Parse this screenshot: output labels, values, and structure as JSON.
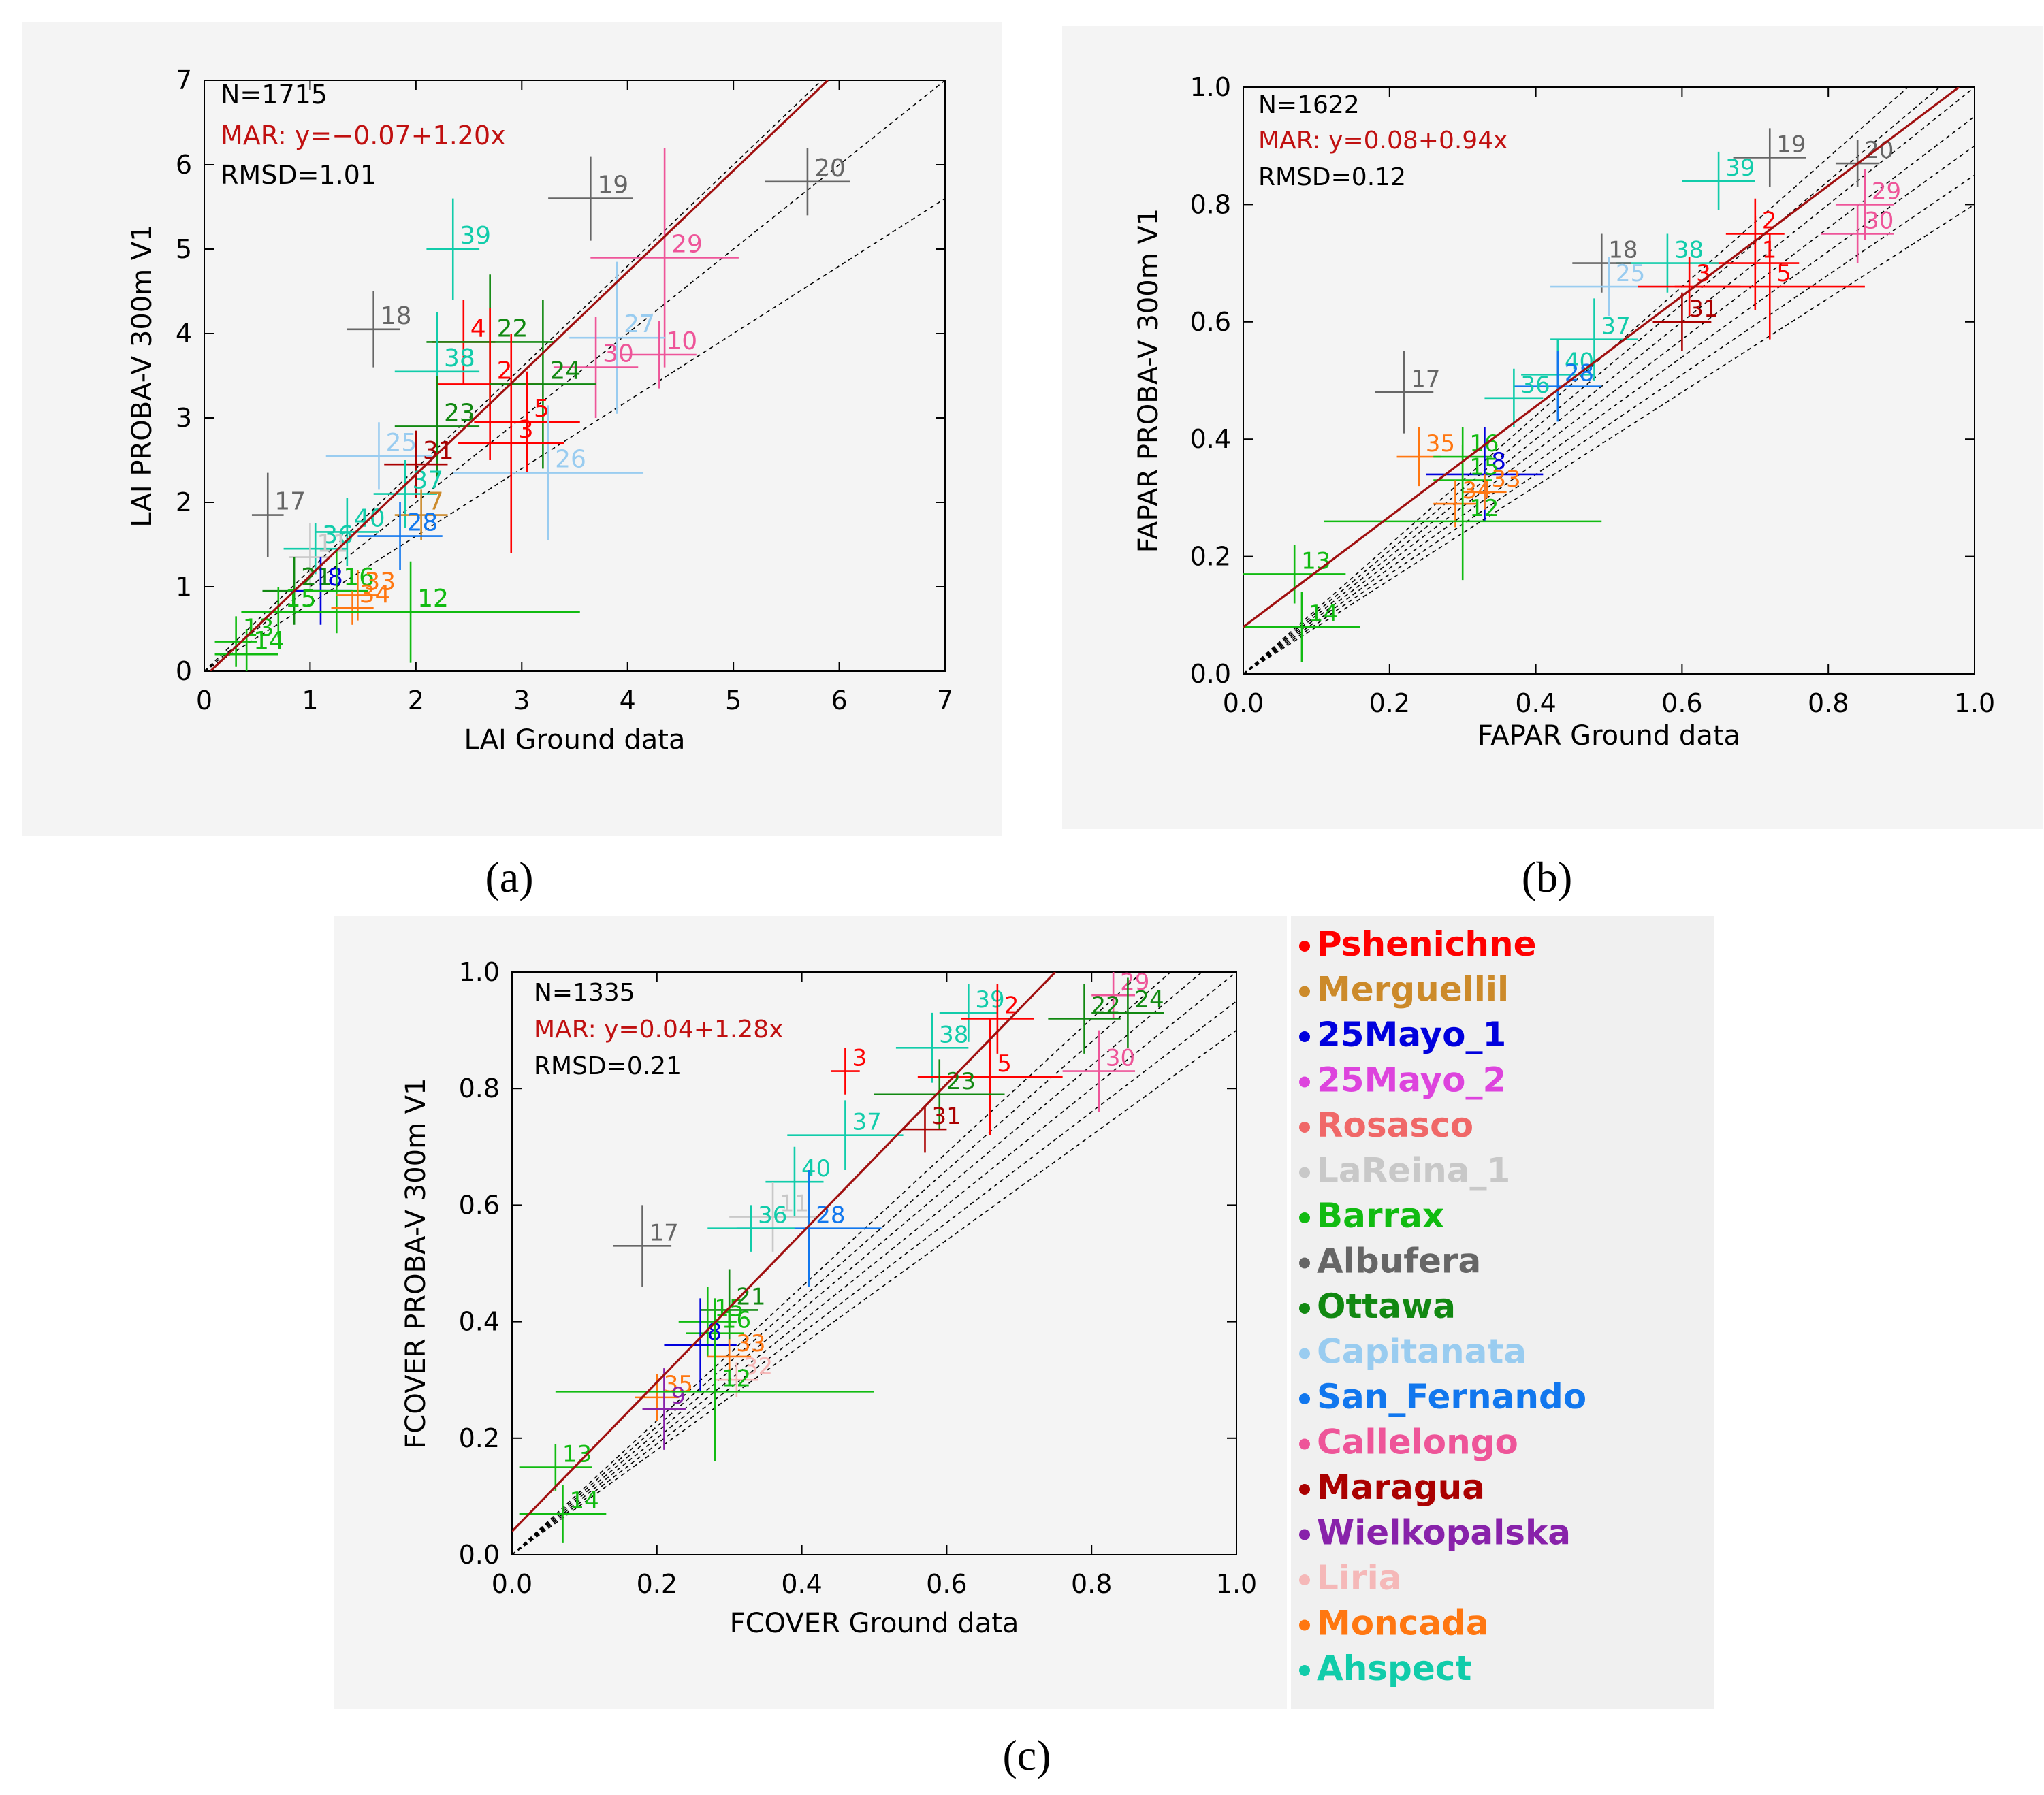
{
  "figure": {
    "captions": [
      "(a)",
      "(b)",
      "(c)"
    ]
  },
  "site_colors": {
    "Pshenichne": "#ff0000",
    "Merguellil": "#cc8a2a",
    "25Mayo_1": "#0000dd",
    "25Mayo_2": "#dd44dd",
    "Rosasco": "#f06868",
    "LaReina_1": "#c8c8c8",
    "Barrax": "#11bb11",
    "Albufera": "#666666",
    "Ottawa": "#118811",
    "Capitanata": "#99ccf0",
    "San_Fernando": "#1177ee",
    "Callelongo": "#ee5599",
    "Maragua": "#aa0000",
    "Wielkopalska": "#8822aa",
    "Liria": "#f5b8b8",
    "Moncada": "#ff7711",
    "Ahspect": "#11ccaa"
  },
  "legend": {
    "entries": [
      {
        "label": "Pshenichne",
        "color": "#ff0000"
      },
      {
        "label": "Merguellil",
        "color": "#cc8a2a"
      },
      {
        "label": "25Mayo_1",
        "color": "#0000dd"
      },
      {
        "label": "25Mayo_2",
        "color": "#dd44dd"
      },
      {
        "label": "Rosasco",
        "color": "#f06868"
      },
      {
        "label": "LaReina_1",
        "color": "#c8c8c8"
      },
      {
        "label": "Barrax",
        "color": "#11bb11"
      },
      {
        "label": "Albufera",
        "color": "#666666"
      },
      {
        "label": "Ottawa",
        "color": "#118811"
      },
      {
        "label": "Capitanata",
        "color": "#99ccf0"
      },
      {
        "label": "San_Fernando",
        "color": "#1177ee"
      },
      {
        "label": "Callelongo",
        "color": "#ee5599"
      },
      {
        "label": "Maragua",
        "color": "#aa0000"
      },
      {
        "label": "Wielkopalska",
        "color": "#8822aa"
      },
      {
        "label": "Liria",
        "color": "#f5b8b8"
      },
      {
        "label": "Moncada",
        "color": "#ff7711"
      },
      {
        "label": "Ahspect",
        "color": "#11ccaa"
      }
    ]
  },
  "chart_data": [
    {
      "type": "scatter",
      "panel": "(a)",
      "xlabel": "LAI Ground data",
      "ylabel": "LAI PROBA-V 300m V1",
      "xlim": [
        0,
        7
      ],
      "ylim": [
        0,
        7
      ],
      "xticks": [
        0,
        1,
        2,
        3,
        4,
        5,
        6,
        7
      ],
      "yticks": [
        0,
        1,
        2,
        3,
        4,
        5,
        6,
        7
      ],
      "tick_decimals": 0,
      "stats": {
        "n": "N=1715",
        "mar": "MAR: y=−0.07+1.20x",
        "rmsd": "RMSD=1.01"
      },
      "regression": {
        "intercept": -0.07,
        "slope": 1.2
      },
      "reference_slopes": [
        0.8,
        1.0,
        1.2
      ],
      "points": [
        {
          "id": "39",
          "site": "Ahspect",
          "x": 2.35,
          "y": 5.0,
          "xerr": 0.25,
          "yerr": 0.6
        },
        {
          "id": "19",
          "site": "Albufera",
          "x": 3.65,
          "y": 5.6,
          "xerr": 0.4,
          "yerr": 0.5
        },
        {
          "id": "20",
          "site": "Albufera",
          "x": 5.7,
          "y": 5.8,
          "xerr": 0.4,
          "yerr": 0.4
        },
        {
          "id": "29",
          "site": "Callelongo",
          "x": 4.35,
          "y": 4.9,
          "xerr": 0.7,
          "yerr": 1.3
        },
        {
          "id": "18",
          "site": "Albufera",
          "x": 1.6,
          "y": 4.05,
          "xerr": 0.25,
          "yerr": 0.45
        },
        {
          "id": "4",
          "site": "Pshenichne",
          "x": 2.45,
          "y": 3.9,
          "xerr": 0.3,
          "yerr": 0.5
        },
        {
          "id": "22",
          "site": "Ottawa",
          "x": 2.7,
          "y": 3.9,
          "xerr": 0.6,
          "yerr": 0.8
        },
        {
          "id": "27",
          "site": "Capitanata",
          "x": 3.9,
          "y": 3.95,
          "xerr": 0.45,
          "yerr": 0.9
        },
        {
          "id": "38",
          "site": "Ahspect",
          "x": 2.2,
          "y": 3.55,
          "xerr": 0.4,
          "yerr": 0.7
        },
        {
          "id": "10",
          "site": "Callelongo",
          "x": 4.3,
          "y": 3.75,
          "xerr": 0.35,
          "yerr": 0.4
        },
        {
          "id": "30",
          "site": "Callelongo",
          "x": 3.7,
          "y": 3.6,
          "xerr": 0.4,
          "yerr": 0.6
        },
        {
          "id": "2",
          "site": "Pshenichne",
          "x": 2.7,
          "y": 3.4,
          "xerr": 0.5,
          "yerr": 0.9
        },
        {
          "id": "24",
          "site": "Ottawa",
          "x": 3.2,
          "y": 3.4,
          "xerr": 0.5,
          "yerr": 1.0
        },
        {
          "id": "23",
          "site": "Ottawa",
          "x": 2.2,
          "y": 2.9,
          "xerr": 0.4,
          "yerr": 0.6
        },
        {
          "id": "5",
          "site": "Pshenichne",
          "x": 3.05,
          "y": 2.95,
          "xerr": 0.5,
          "yerr": 0.6
        },
        {
          "id": "25",
          "site": "Capitanata",
          "x": 1.65,
          "y": 2.55,
          "xerr": 0.5,
          "yerr": 0.4
        },
        {
          "id": "26",
          "site": "Capitanata",
          "x": 3.25,
          "y": 2.35,
          "xerr": 0.9,
          "yerr": 0.8
        },
        {
          "id": "31",
          "site": "Maragua",
          "x": 2.0,
          "y": 2.45,
          "xerr": 0.3,
          "yerr": 0.4
        },
        {
          "id": "3",
          "site": "Pshenichne",
          "x": 2.9,
          "y": 2.7,
          "xerr": 0.5,
          "yerr": 1.3
        },
        {
          "id": "37",
          "site": "Ahspect",
          "x": 1.9,
          "y": 2.1,
          "xerr": 0.3,
          "yerr": 0.4
        },
        {
          "id": "7",
          "site": "Merguellil",
          "x": 2.05,
          "y": 1.85,
          "xerr": 0.25,
          "yerr": 0.3
        },
        {
          "id": "17",
          "site": "Albufera",
          "x": 0.6,
          "y": 1.85,
          "xerr": 0.15,
          "yerr": 0.5
        },
        {
          "id": "40",
          "site": "Ahspect",
          "x": 1.35,
          "y": 1.65,
          "xerr": 0.3,
          "yerr": 0.4
        },
        {
          "id": "28",
          "site": "San_Fernando",
          "x": 1.85,
          "y": 1.6,
          "xerr": 0.4,
          "yerr": 0.4
        },
        {
          "id": "36",
          "site": "Ahspect",
          "x": 1.05,
          "y": 1.45,
          "xerr": 0.3,
          "yerr": 0.3
        },
        {
          "id": "11",
          "site": "LaReina_1",
          "x": 1.0,
          "y": 1.35,
          "xerr": 0.2,
          "yerr": 0.4
        },
        {
          "id": "21",
          "site": "Ottawa",
          "x": 0.85,
          "y": 0.95,
          "xerr": 0.3,
          "yerr": 0.4
        },
        {
          "id": "8",
          "site": "25Mayo_1",
          "x": 1.1,
          "y": 0.95,
          "xerr": 0.3,
          "yerr": 0.4
        },
        {
          "id": "16",
          "site": "Barrax",
          "x": 1.25,
          "y": 0.95,
          "xerr": 0.3,
          "yerr": 0.5
        },
        {
          "id": "33",
          "site": "Moncada",
          "x": 1.45,
          "y": 0.9,
          "xerr": 0.2,
          "yerr": 0.3
        },
        {
          "id": "34",
          "site": "Moncada",
          "x": 1.4,
          "y": 0.75,
          "xerr": 0.2,
          "yerr": 0.2
        },
        {
          "id": "12",
          "site": "Barrax",
          "x": 1.95,
          "y": 0.7,
          "xerr": 1.6,
          "yerr": 0.6
        },
        {
          "id": "15",
          "site": "Barrax",
          "x": 0.7,
          "y": 0.7,
          "xerr": 0.3,
          "yerr": 0.3
        },
        {
          "id": "13",
          "site": "Barrax",
          "x": 0.3,
          "y": 0.35,
          "xerr": 0.2,
          "yerr": 0.3
        },
        {
          "id": "14",
          "site": "Barrax",
          "x": 0.4,
          "y": 0.2,
          "xerr": 0.3,
          "yerr": 0.3
        }
      ]
    },
    {
      "type": "scatter",
      "panel": "(b)",
      "xlabel": "FAPAR Ground data",
      "ylabel": "FAPAR PROBA-V 300m V1",
      "xlim": [
        0,
        1
      ],
      "ylim": [
        0,
        1
      ],
      "xticks": [
        0,
        0.2,
        0.4,
        0.6,
        0.8,
        1.0
      ],
      "yticks": [
        0,
        0.2,
        0.4,
        0.6,
        0.8,
        1.0
      ],
      "tick_decimals": 1,
      "stats": {
        "n": "N=1622",
        "mar": "MAR: y=0.08+0.94x",
        "rmsd": "RMSD=0.12"
      },
      "regression": {
        "intercept": 0.08,
        "slope": 0.94
      },
      "reference_slopes": [
        0.8,
        0.85,
        0.9,
        0.95,
        1.0,
        1.05,
        1.1
      ],
      "points": [
        {
          "id": "19",
          "site": "Albufera",
          "x": 0.72,
          "y": 0.88,
          "xerr": 0.05,
          "yerr": 0.05
        },
        {
          "id": "39",
          "site": "Ahspect",
          "x": 0.65,
          "y": 0.84,
          "xerr": 0.05,
          "yerr": 0.05
        },
        {
          "id": "20",
          "site": "Albufera",
          "x": 0.84,
          "y": 0.87,
          "xerr": 0.03,
          "yerr": 0.04
        },
        {
          "id": "29",
          "site": "Callelongo",
          "x": 0.85,
          "y": 0.8,
          "xerr": 0.04,
          "yerr": 0.06
        },
        {
          "id": "30",
          "site": "Callelongo",
          "x": 0.84,
          "y": 0.75,
          "xerr": 0.05,
          "yerr": 0.05
        },
        {
          "id": "2",
          "site": "Pshenichne",
          "x": 0.7,
          "y": 0.75,
          "xerr": 0.04,
          "yerr": 0.06
        },
        {
          "id": "1",
          "site": "Pshenichne",
          "x": 0.7,
          "y": 0.7,
          "xerr": 0.06,
          "yerr": 0.08
        },
        {
          "id": "38",
          "site": "Ahspect",
          "x": 0.58,
          "y": 0.7,
          "xerr": 0.07,
          "yerr": 0.05
        },
        {
          "id": "18",
          "site": "Albufera",
          "x": 0.49,
          "y": 0.7,
          "xerr": 0.04,
          "yerr": 0.05
        },
        {
          "id": "25",
          "site": "Capitanata",
          "x": 0.5,
          "y": 0.66,
          "xerr": 0.08,
          "yerr": 0.05
        },
        {
          "id": "3",
          "site": "Pshenichne",
          "x": 0.61,
          "y": 0.66,
          "xerr": 0.07,
          "yerr": 0.05
        },
        {
          "id": "5",
          "site": "Pshenichne",
          "x": 0.72,
          "y": 0.66,
          "xerr": 0.13,
          "yerr": 0.09
        },
        {
          "id": "31",
          "site": "Maragua",
          "x": 0.6,
          "y": 0.6,
          "xerr": 0.04,
          "yerr": 0.05
        },
        {
          "id": "37",
          "site": "Ahspect",
          "x": 0.48,
          "y": 0.57,
          "xerr": 0.06,
          "yerr": 0.07
        },
        {
          "id": "40",
          "site": "Ahspect",
          "x": 0.43,
          "y": 0.51,
          "xerr": 0.05,
          "yerr": 0.06
        },
        {
          "id": "28",
          "site": "San_Fernando",
          "x": 0.43,
          "y": 0.49,
          "xerr": 0.06,
          "yerr": 0.06
        },
        {
          "id": "36",
          "site": "Ahspect",
          "x": 0.37,
          "y": 0.47,
          "xerr": 0.04,
          "yerr": 0.05
        },
        {
          "id": "17",
          "site": "Albufera",
          "x": 0.22,
          "y": 0.48,
          "xerr": 0.04,
          "yerr": 0.07
        },
        {
          "id": "35",
          "site": "Moncada",
          "x": 0.24,
          "y": 0.37,
          "xerr": 0.03,
          "yerr": 0.05
        },
        {
          "id": "16",
          "site": "Barrax",
          "x": 0.3,
          "y": 0.37,
          "xerr": 0.04,
          "yerr": 0.05
        },
        {
          "id": "8",
          "site": "25Mayo_1",
          "x": 0.33,
          "y": 0.34,
          "xerr": 0.08,
          "yerr": 0.08
        },
        {
          "id": "15",
          "site": "Barrax",
          "x": 0.3,
          "y": 0.33,
          "xerr": 0.04,
          "yerr": 0.06
        },
        {
          "id": "33",
          "site": "Moncada",
          "x": 0.33,
          "y": 0.31,
          "xerr": 0.03,
          "yerr": 0.03
        },
        {
          "id": "34",
          "site": "Moncada",
          "x": 0.29,
          "y": 0.29,
          "xerr": 0.03,
          "yerr": 0.04
        },
        {
          "id": "12",
          "site": "Barrax",
          "x": 0.3,
          "y": 0.26,
          "xerr": 0.19,
          "yerr": 0.1
        },
        {
          "id": "13",
          "site": "Barrax",
          "x": 0.07,
          "y": 0.17,
          "xerr": 0.07,
          "yerr": 0.05
        },
        {
          "id": "14",
          "site": "Barrax",
          "x": 0.08,
          "y": 0.08,
          "xerr": 0.08,
          "yerr": 0.06
        }
      ]
    },
    {
      "type": "scatter",
      "panel": "(c)",
      "xlabel": "FCOVER Ground data",
      "ylabel": "FCOVER PROBA-V 300m V1",
      "xlim": [
        0,
        1
      ],
      "ylim": [
        0,
        1
      ],
      "xticks": [
        0,
        0.2,
        0.4,
        0.6,
        0.8,
        1.0
      ],
      "yticks": [
        0,
        0.2,
        0.4,
        0.6,
        0.8,
        1.0
      ],
      "tick_decimals": 1,
      "stats": {
        "n": "N=1335",
        "mar": "MAR: y=0.04+1.28x",
        "rmsd": "RMSD=0.21"
      },
      "regression": {
        "intercept": 0.04,
        "slope": 1.28
      },
      "reference_slopes": [
        0.9,
        0.95,
        1.0,
        1.05,
        1.1,
        1.15
      ],
      "points": [
        {
          "id": "29",
          "site": "Callelongo",
          "x": 0.83,
          "y": 0.96,
          "xerr": 0.03,
          "yerr": 0.04
        },
        {
          "id": "39",
          "site": "Ahspect",
          "x": 0.63,
          "y": 0.93,
          "xerr": 0.04,
          "yerr": 0.05
        },
        {
          "id": "2",
          "site": "Pshenichne",
          "x": 0.67,
          "y": 0.92,
          "xerr": 0.05,
          "yerr": 0.06
        },
        {
          "id": "22",
          "site": "Ottawa",
          "x": 0.79,
          "y": 0.92,
          "xerr": 0.05,
          "yerr": 0.06
        },
        {
          "id": "24",
          "site": "Ottawa",
          "x": 0.85,
          "y": 0.93,
          "xerr": 0.05,
          "yerr": 0.06
        },
        {
          "id": "38",
          "site": "Ahspect",
          "x": 0.58,
          "y": 0.87,
          "xerr": 0.05,
          "yerr": 0.06
        },
        {
          "id": "3",
          "site": "Pshenichne",
          "x": 0.46,
          "y": 0.83,
          "xerr": 0.02,
          "yerr": 0.04
        },
        {
          "id": "5",
          "site": "Pshenichne",
          "x": 0.66,
          "y": 0.82,
          "xerr": 0.1,
          "yerr": 0.1
        },
        {
          "id": "30",
          "site": "Callelongo",
          "x": 0.81,
          "y": 0.83,
          "xerr": 0.05,
          "yerr": 0.07
        },
        {
          "id": "23",
          "site": "Ottawa",
          "x": 0.59,
          "y": 0.79,
          "xerr": 0.09,
          "yerr": 0.06
        },
        {
          "id": "31",
          "site": "Maragua",
          "x": 0.57,
          "y": 0.73,
          "xerr": 0.03,
          "yerr": 0.04
        },
        {
          "id": "37",
          "site": "Ahspect",
          "x": 0.46,
          "y": 0.72,
          "xerr": 0.08,
          "yerr": 0.06
        },
        {
          "id": "40",
          "site": "Ahspect",
          "x": 0.39,
          "y": 0.64,
          "xerr": 0.04,
          "yerr": 0.06
        },
        {
          "id": "11",
          "site": "LaReina_1",
          "x": 0.36,
          "y": 0.58,
          "xerr": 0.06,
          "yerr": 0.06
        },
        {
          "id": "28",
          "site": "San_Fernando",
          "x": 0.41,
          "y": 0.56,
          "xerr": 0.1,
          "yerr": 0.1
        },
        {
          "id": "36",
          "site": "Ahspect",
          "x": 0.33,
          "y": 0.56,
          "xerr": 0.06,
          "yerr": 0.04
        },
        {
          "id": "17",
          "site": "Albufera",
          "x": 0.18,
          "y": 0.53,
          "xerr": 0.04,
          "yerr": 0.07
        },
        {
          "id": "21",
          "site": "Ottawa",
          "x": 0.3,
          "y": 0.42,
          "xerr": 0.04,
          "yerr": 0.07
        },
        {
          "id": "15",
          "site": "Barrax",
          "x": 0.27,
          "y": 0.4,
          "xerr": 0.04,
          "yerr": 0.06
        },
        {
          "id": "16",
          "site": "Barrax",
          "x": 0.28,
          "y": 0.38,
          "xerr": 0.04,
          "yerr": 0.06
        },
        {
          "id": "8",
          "site": "25Mayo_1",
          "x": 0.26,
          "y": 0.36,
          "xerr": 0.05,
          "yerr": 0.08
        },
        {
          "id": "33",
          "site": "Moncada",
          "x": 0.3,
          "y": 0.34,
          "xerr": 0.03,
          "yerr": 0.03
        },
        {
          "id": "32",
          "site": "Liria",
          "x": 0.31,
          "y": 0.3,
          "xerr": 0.03,
          "yerr": 0.03
        },
        {
          "id": "35",
          "site": "Moncada",
          "x": 0.2,
          "y": 0.27,
          "xerr": 0.03,
          "yerr": 0.04
        },
        {
          "id": "9",
          "site": "Wielkopalska",
          "x": 0.21,
          "y": 0.25,
          "xerr": 0.03,
          "yerr": 0.07
        },
        {
          "id": "12",
          "site": "Barrax",
          "x": 0.28,
          "y": 0.28,
          "xerr": 0.22,
          "yerr": 0.12
        },
        {
          "id": "13",
          "site": "Barrax",
          "x": 0.06,
          "y": 0.15,
          "xerr": 0.05,
          "yerr": 0.04
        },
        {
          "id": "14",
          "site": "Barrax",
          "x": 0.07,
          "y": 0.07,
          "xerr": 0.06,
          "yerr": 0.05
        }
      ]
    }
  ]
}
